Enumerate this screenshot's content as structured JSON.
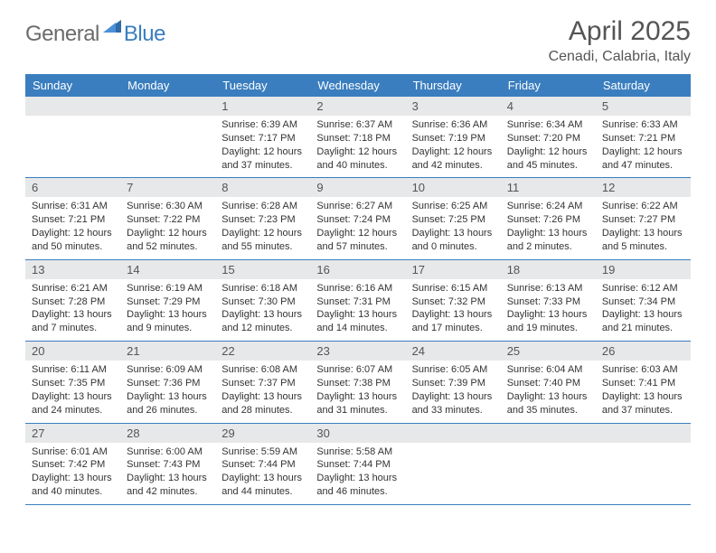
{
  "logo": {
    "text1": "General",
    "text2": "Blue"
  },
  "title": "April 2025",
  "location": "Cenadi, Calabria, Italy",
  "colors": {
    "header_bg": "#3a7ebf",
    "header_fg": "#ffffff",
    "daynum_bg": "#e7e8e9",
    "text": "#333333",
    "rule": "#3a7ebf",
    "logo_gray": "#6b6b6b",
    "logo_blue": "#3a7ebf"
  },
  "day_names": [
    "Sunday",
    "Monday",
    "Tuesday",
    "Wednesday",
    "Thursday",
    "Friday",
    "Saturday"
  ],
  "weeks": [
    [
      null,
      null,
      {
        "n": "1",
        "sr": "Sunrise: 6:39 AM",
        "ss": "Sunset: 7:17 PM",
        "d1": "Daylight: 12 hours",
        "d2": "and 37 minutes."
      },
      {
        "n": "2",
        "sr": "Sunrise: 6:37 AM",
        "ss": "Sunset: 7:18 PM",
        "d1": "Daylight: 12 hours",
        "d2": "and 40 minutes."
      },
      {
        "n": "3",
        "sr": "Sunrise: 6:36 AM",
        "ss": "Sunset: 7:19 PM",
        "d1": "Daylight: 12 hours",
        "d2": "and 42 minutes."
      },
      {
        "n": "4",
        "sr": "Sunrise: 6:34 AM",
        "ss": "Sunset: 7:20 PM",
        "d1": "Daylight: 12 hours",
        "d2": "and 45 minutes."
      },
      {
        "n": "5",
        "sr": "Sunrise: 6:33 AM",
        "ss": "Sunset: 7:21 PM",
        "d1": "Daylight: 12 hours",
        "d2": "and 47 minutes."
      }
    ],
    [
      {
        "n": "6",
        "sr": "Sunrise: 6:31 AM",
        "ss": "Sunset: 7:21 PM",
        "d1": "Daylight: 12 hours",
        "d2": "and 50 minutes."
      },
      {
        "n": "7",
        "sr": "Sunrise: 6:30 AM",
        "ss": "Sunset: 7:22 PM",
        "d1": "Daylight: 12 hours",
        "d2": "and 52 minutes."
      },
      {
        "n": "8",
        "sr": "Sunrise: 6:28 AM",
        "ss": "Sunset: 7:23 PM",
        "d1": "Daylight: 12 hours",
        "d2": "and 55 minutes."
      },
      {
        "n": "9",
        "sr": "Sunrise: 6:27 AM",
        "ss": "Sunset: 7:24 PM",
        "d1": "Daylight: 12 hours",
        "d2": "and 57 minutes."
      },
      {
        "n": "10",
        "sr": "Sunrise: 6:25 AM",
        "ss": "Sunset: 7:25 PM",
        "d1": "Daylight: 13 hours",
        "d2": "and 0 minutes."
      },
      {
        "n": "11",
        "sr": "Sunrise: 6:24 AM",
        "ss": "Sunset: 7:26 PM",
        "d1": "Daylight: 13 hours",
        "d2": "and 2 minutes."
      },
      {
        "n": "12",
        "sr": "Sunrise: 6:22 AM",
        "ss": "Sunset: 7:27 PM",
        "d1": "Daylight: 13 hours",
        "d2": "and 5 minutes."
      }
    ],
    [
      {
        "n": "13",
        "sr": "Sunrise: 6:21 AM",
        "ss": "Sunset: 7:28 PM",
        "d1": "Daylight: 13 hours",
        "d2": "and 7 minutes."
      },
      {
        "n": "14",
        "sr": "Sunrise: 6:19 AM",
        "ss": "Sunset: 7:29 PM",
        "d1": "Daylight: 13 hours",
        "d2": "and 9 minutes."
      },
      {
        "n": "15",
        "sr": "Sunrise: 6:18 AM",
        "ss": "Sunset: 7:30 PM",
        "d1": "Daylight: 13 hours",
        "d2": "and 12 minutes."
      },
      {
        "n": "16",
        "sr": "Sunrise: 6:16 AM",
        "ss": "Sunset: 7:31 PM",
        "d1": "Daylight: 13 hours",
        "d2": "and 14 minutes."
      },
      {
        "n": "17",
        "sr": "Sunrise: 6:15 AM",
        "ss": "Sunset: 7:32 PM",
        "d1": "Daylight: 13 hours",
        "d2": "and 17 minutes."
      },
      {
        "n": "18",
        "sr": "Sunrise: 6:13 AM",
        "ss": "Sunset: 7:33 PM",
        "d1": "Daylight: 13 hours",
        "d2": "and 19 minutes."
      },
      {
        "n": "19",
        "sr": "Sunrise: 6:12 AM",
        "ss": "Sunset: 7:34 PM",
        "d1": "Daylight: 13 hours",
        "d2": "and 21 minutes."
      }
    ],
    [
      {
        "n": "20",
        "sr": "Sunrise: 6:11 AM",
        "ss": "Sunset: 7:35 PM",
        "d1": "Daylight: 13 hours",
        "d2": "and 24 minutes."
      },
      {
        "n": "21",
        "sr": "Sunrise: 6:09 AM",
        "ss": "Sunset: 7:36 PM",
        "d1": "Daylight: 13 hours",
        "d2": "and 26 minutes."
      },
      {
        "n": "22",
        "sr": "Sunrise: 6:08 AM",
        "ss": "Sunset: 7:37 PM",
        "d1": "Daylight: 13 hours",
        "d2": "and 28 minutes."
      },
      {
        "n": "23",
        "sr": "Sunrise: 6:07 AM",
        "ss": "Sunset: 7:38 PM",
        "d1": "Daylight: 13 hours",
        "d2": "and 31 minutes."
      },
      {
        "n": "24",
        "sr": "Sunrise: 6:05 AM",
        "ss": "Sunset: 7:39 PM",
        "d1": "Daylight: 13 hours",
        "d2": "and 33 minutes."
      },
      {
        "n": "25",
        "sr": "Sunrise: 6:04 AM",
        "ss": "Sunset: 7:40 PM",
        "d1": "Daylight: 13 hours",
        "d2": "and 35 minutes."
      },
      {
        "n": "26",
        "sr": "Sunrise: 6:03 AM",
        "ss": "Sunset: 7:41 PM",
        "d1": "Daylight: 13 hours",
        "d2": "and 37 minutes."
      }
    ],
    [
      {
        "n": "27",
        "sr": "Sunrise: 6:01 AM",
        "ss": "Sunset: 7:42 PM",
        "d1": "Daylight: 13 hours",
        "d2": "and 40 minutes."
      },
      {
        "n": "28",
        "sr": "Sunrise: 6:00 AM",
        "ss": "Sunset: 7:43 PM",
        "d1": "Daylight: 13 hours",
        "d2": "and 42 minutes."
      },
      {
        "n": "29",
        "sr": "Sunrise: 5:59 AM",
        "ss": "Sunset: 7:44 PM",
        "d1": "Daylight: 13 hours",
        "d2": "and 44 minutes."
      },
      {
        "n": "30",
        "sr": "Sunrise: 5:58 AM",
        "ss": "Sunset: 7:44 PM",
        "d1": "Daylight: 13 hours",
        "d2": "and 46 minutes."
      },
      null,
      null,
      null
    ]
  ]
}
